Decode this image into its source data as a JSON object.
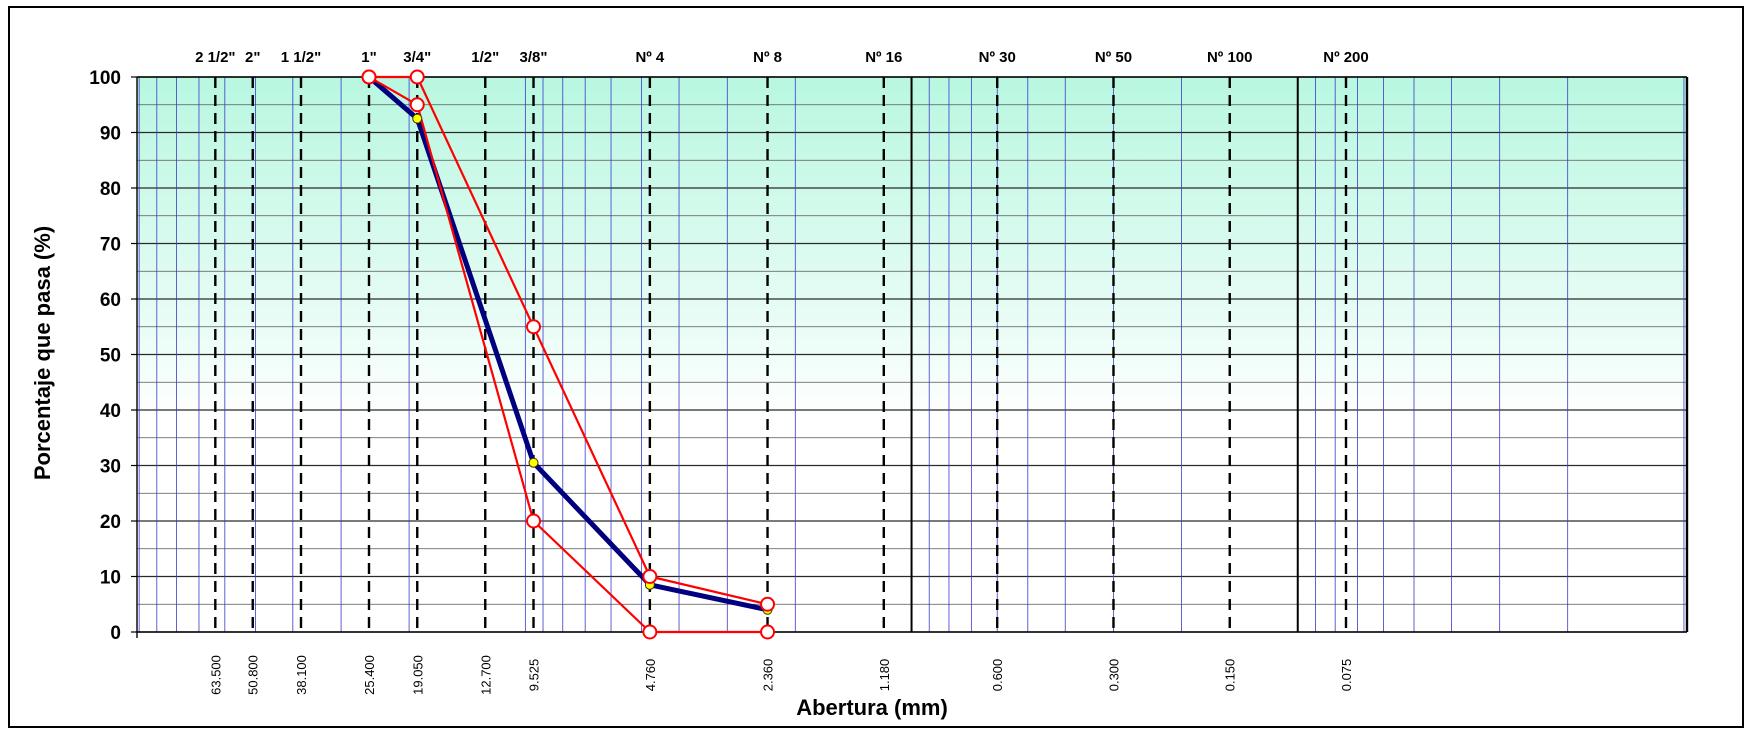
{
  "chart_data": {
    "type": "line",
    "xscale": "log",
    "x_reversed": true,
    "xlabel": "Abertura (mm)",
    "ylabel": "Porcentaje que pasa (%)",
    "ylim": [
      0,
      100
    ],
    "yticks": [
      0,
      10,
      20,
      30,
      40,
      50,
      60,
      70,
      80,
      90,
      100
    ],
    "grid": true,
    "legend": "none",
    "colors": {
      "curve": "#00007f",
      "limits": "#ff0000",
      "marker_fill": "#ffff00",
      "band_top": "#b8f7e0",
      "sieve_line": "#000000",
      "minor_grid": "#3a3ad0"
    },
    "sieves": [
      {
        "name": "2 1/2\"",
        "opening": 63.5,
        "opening_label": "63.500"
      },
      {
        "name": "2\"",
        "opening": 50.8,
        "opening_label": "50.800"
      },
      {
        "name": "1 1/2\"",
        "opening": 38.1,
        "opening_label": "38.100"
      },
      {
        "name": "1\"",
        "opening": 25.4,
        "opening_label": "25.400"
      },
      {
        "name": "3/4\"",
        "opening": 19.05,
        "opening_label": "19.050"
      },
      {
        "name": "1/2\"",
        "opening": 12.7,
        "opening_label": "12.700"
      },
      {
        "name": "3/8\"",
        "opening": 9.525,
        "opening_label": "9.525"
      },
      {
        "name": "Nº 4",
        "opening": 4.76,
        "opening_label": "4.760"
      },
      {
        "name": "Nº 8",
        "opening": 2.36,
        "opening_label": "2.360"
      },
      {
        "name": "Nº 16",
        "opening": 1.18,
        "opening_label": "1.180"
      },
      {
        "name": "Nº 30",
        "opening": 0.6,
        "opening_label": "0.600"
      },
      {
        "name": "Nº 50",
        "opening": 0.3,
        "opening_label": "0.300"
      },
      {
        "name": "Nº 100",
        "opening": 0.15,
        "opening_label": "0.150"
      },
      {
        "name": "Nº 200",
        "opening": 0.075,
        "opening_label": "0.075"
      }
    ],
    "series": [
      {
        "color": "#00007f",
        "x": [
          25.4,
          19.05,
          9.525,
          4.76,
          2.36
        ],
        "y": [
          100,
          92.5,
          30.5,
          8.5,
          4.0
        ]
      },
      {
        "color": "#ff0000",
        "x": [
          25.4,
          19.05,
          9.525,
          4.76,
          2.36
        ],
        "y": [
          100,
          100,
          55,
          10,
          5
        ]
      },
      {
        "color": "#ff0000",
        "x": [
          25.4,
          19.05,
          9.525,
          4.76,
          2.36
        ],
        "y": [
          100,
          95,
          20,
          0,
          0
        ]
      }
    ]
  }
}
